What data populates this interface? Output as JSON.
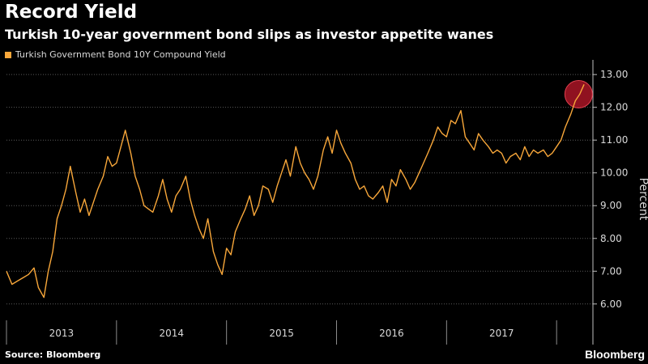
{
  "header": {
    "title": "Record Yield",
    "subtitle": "Turkish 10-year government bond slips as investor appetite wanes"
  },
  "footer": {
    "source": "Source: Bloomberg",
    "brand": "Bloomberg"
  },
  "colors": {
    "series": "#f8a73a",
    "highlight": "#c0182b",
    "background": "#000000"
  },
  "chart_data": {
    "type": "line",
    "title": "Record Yield",
    "subtitle": "Turkish 10-year government bond slips as investor appetite wanes",
    "xlabel": "",
    "ylabel": "Percent",
    "ylim": [
      5.6,
      13.3
    ],
    "xlim": [
      2012.5,
      2017.83
    ],
    "yticks": [
      6.0,
      7.0,
      8.0,
      9.0,
      10.0,
      11.0,
      12.0,
      13.0
    ],
    "ytick_labels": [
      "6.00",
      "7.00",
      "8.00",
      "9.00",
      "10.00",
      "11.00",
      "12.00",
      "13.00"
    ],
    "xtick_labels": [
      "2013",
      "2014",
      "2015",
      "2016",
      "2017"
    ],
    "xtick_label_positions": [
      2013.0,
      2014.0,
      2015.0,
      2016.0,
      2017.0
    ],
    "year_boundaries": [
      2012.5,
      2013.5,
      2014.5,
      2015.5,
      2016.5,
      2017.5
    ],
    "grid": true,
    "legend": "top-left",
    "highlight_point": {
      "x": 2017.7,
      "y": 12.4
    },
    "series": [
      {
        "name": "Turkish Government Bond 10Y Compound Yield",
        "x": [
          2012.5,
          2012.55,
          2012.6,
          2012.65,
          2012.7,
          2012.75,
          2012.79,
          2012.84,
          2012.88,
          2012.92,
          2012.96,
          2013.0,
          2013.04,
          2013.08,
          2013.13,
          2013.17,
          2013.21,
          2013.25,
          2013.29,
          2013.33,
          2013.38,
          2013.42,
          2013.46,
          2013.5,
          2013.54,
          2013.58,
          2013.63,
          2013.67,
          2013.71,
          2013.75,
          2013.79,
          2013.83,
          2013.88,
          2013.92,
          2013.96,
          2014.0,
          2014.04,
          2014.08,
          2014.13,
          2014.17,
          2014.21,
          2014.25,
          2014.29,
          2014.33,
          2014.38,
          2014.42,
          2014.46,
          2014.5,
          2014.54,
          2014.58,
          2014.63,
          2014.67,
          2014.71,
          2014.75,
          2014.79,
          2014.83,
          2014.88,
          2014.92,
          2014.96,
          2015.0,
          2015.04,
          2015.08,
          2015.13,
          2015.17,
          2015.21,
          2015.25,
          2015.29,
          2015.33,
          2015.38,
          2015.42,
          2015.46,
          2015.5,
          2015.54,
          2015.58,
          2015.63,
          2015.67,
          2015.71,
          2015.75,
          2015.79,
          2015.83,
          2015.88,
          2015.92,
          2015.96,
          2016.0,
          2016.04,
          2016.08,
          2016.13,
          2016.17,
          2016.21,
          2016.25,
          2016.29,
          2016.33,
          2016.38,
          2016.42,
          2016.46,
          2016.5,
          2016.54,
          2016.58,
          2016.63,
          2016.67,
          2016.71,
          2016.75,
          2016.79,
          2016.83,
          2016.88,
          2016.92,
          2016.96,
          2017.0,
          2017.04,
          2017.08,
          2017.13,
          2017.17,
          2017.21,
          2017.25,
          2017.29,
          2017.33,
          2017.38,
          2017.42,
          2017.46,
          2017.5,
          2017.54,
          2017.58,
          2017.63,
          2017.67,
          2017.71,
          2017.75
        ],
        "values": [
          7.0,
          6.6,
          6.7,
          6.8,
          6.9,
          7.1,
          6.5,
          6.2,
          7.0,
          7.6,
          8.6,
          9.0,
          9.5,
          10.2,
          9.4,
          8.8,
          9.2,
          8.7,
          9.1,
          9.5,
          9.9,
          10.5,
          10.2,
          10.3,
          10.8,
          11.3,
          10.6,
          9.9,
          9.5,
          9.0,
          8.9,
          8.8,
          9.3,
          9.8,
          9.2,
          8.8,
          9.3,
          9.5,
          9.9,
          9.2,
          8.7,
          8.3,
          8.0,
          8.6,
          7.6,
          7.2,
          6.9,
          7.7,
          7.5,
          8.2,
          8.6,
          8.9,
          9.3,
          8.7,
          9.0,
          9.6,
          9.5,
          9.1,
          9.6,
          10.0,
          10.4,
          9.9,
          10.8,
          10.3,
          10.0,
          9.8,
          9.5,
          9.9,
          10.7,
          11.1,
          10.6,
          11.3,
          10.9,
          10.6,
          10.3,
          9.8,
          9.5,
          9.6,
          9.3,
          9.2,
          9.4,
          9.6,
          9.1,
          9.8,
          9.6,
          10.1,
          9.8,
          9.5,
          9.7,
          10.0,
          10.3,
          10.6,
          11.0,
          11.4,
          11.2,
          11.1,
          11.6,
          11.5,
          11.9,
          11.1,
          10.9,
          10.7,
          11.2,
          11.0,
          10.8,
          10.6,
          10.7,
          10.6,
          10.3,
          10.5,
          10.6,
          10.4,
          10.8,
          10.5,
          10.7,
          10.6,
          10.7,
          10.5,
          10.6,
          10.8,
          11.0,
          11.4,
          11.8,
          12.2,
          12.4,
          12.7
        ]
      }
    ]
  }
}
